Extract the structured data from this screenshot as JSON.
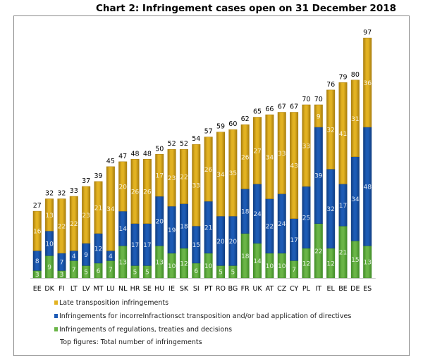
{
  "chart_data": {
    "type": "bar",
    "stacked": true,
    "title": "Chart 2: Infringement cases open on 31 December 2018",
    "categories": [
      "EE",
      "DK",
      "FI",
      "LT",
      "LV",
      "MT",
      "LU",
      "NL",
      "HR",
      "SE",
      "HU",
      "IE",
      "SK",
      "SI",
      "PT",
      "RO",
      "BG",
      "FR",
      "UK",
      "AT",
      "CZ",
      "CY",
      "PL",
      "IT",
      "EL",
      "BE",
      "DE",
      "ES"
    ],
    "totals": [
      27,
      32,
      32,
      33,
      37,
      39,
      45,
      47,
      48,
      48,
      50,
      52,
      52,
      54,
      57,
      59,
      60,
      62,
      65,
      66,
      67,
      67,
      70,
      70,
      76,
      79,
      80,
      97
    ],
    "series": [
      {
        "name": "Infringements of regulations, treaties and decisions",
        "color": "#6ab547",
        "values": [
          3,
          9,
          3,
          7,
          5,
          6,
          7,
          13,
          5,
          5,
          13,
          10,
          12,
          6,
          10,
          5,
          5,
          18,
          14,
          10,
          10,
          7,
          12,
          22,
          12,
          21,
          15,
          13
        ]
      },
      {
        "name": "Infringements for incorreInfractionsct transposition and/or bad application of directives",
        "color": "#1d5bb5",
        "values": [
          8,
          10,
          7,
          4,
          9,
          12,
          4,
          14,
          17,
          17,
          20,
          19,
          18,
          15,
          21,
          20,
          20,
          18,
          24,
          22,
          24,
          17,
          25,
          39,
          32,
          17,
          34,
          48
        ]
      },
      {
        "name": "Late transposition infringements",
        "color": "#e2b222",
        "values": [
          16,
          13,
          22,
          22,
          23,
          21,
          34,
          20,
          26,
          26,
          17,
          23,
          22,
          33,
          26,
          34,
          35,
          26,
          27,
          34,
          33,
          43,
          33,
          9,
          32,
          41,
          31,
          36
        ]
      }
    ],
    "footnote": "Top figures: Total number of infringements",
    "ylim": [
      0,
      100
    ],
    "grid": false,
    "legend_position": "bottom"
  }
}
